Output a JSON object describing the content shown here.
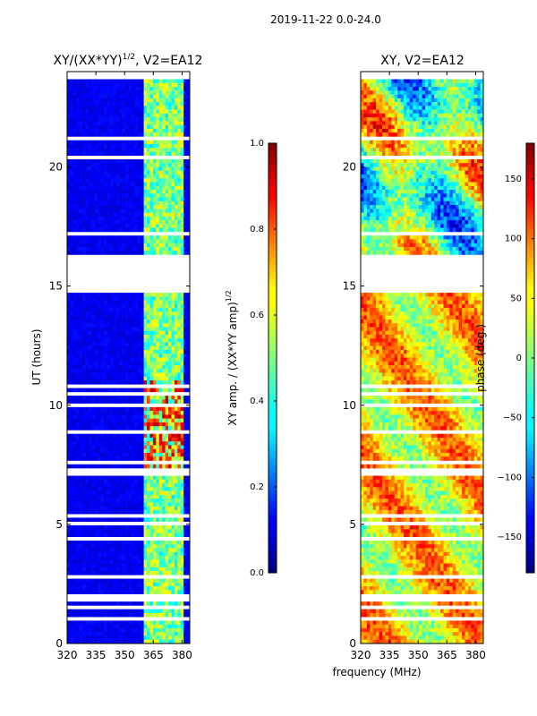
{
  "suptitle": "2019-11-22 0.0-24.0",
  "chart_data": [
    {
      "type": "heatmap",
      "title_main": "XY/(XX*YY)",
      "title_sup": "1/2",
      "title_tail": ", V2=EA12",
      "ylabel": "UT (hours)",
      "xlabel": "",
      "xlim": [
        320,
        384
      ],
      "ylim": [
        0,
        24
      ],
      "xticks": [
        320,
        335,
        350,
        365,
        380
      ],
      "yticks": [
        0,
        5,
        10,
        15,
        20
      ],
      "data_gap_hours": [
        16.3,
        14.7
      ],
      "colorbar": {
        "label_main": "XY amp. / (XX*YY amp)",
        "label_sup": "1/2",
        "range": [
          0.0,
          1.0
        ],
        "ticks": [
          "0.0",
          "0.2",
          "0.4",
          "0.6",
          "0.8",
          "1.0"
        ]
      }
    },
    {
      "type": "heatmap",
      "title": "XY, V2=EA12",
      "xlabel": "frequency (MHz)",
      "xlim": [
        320,
        384
      ],
      "ylim": [
        0,
        24
      ],
      "xticks": [
        320,
        335,
        350,
        365,
        380
      ],
      "yticks": [
        0,
        5,
        10,
        15,
        20
      ],
      "data_gap_hours": [
        16.3,
        14.7
      ],
      "colorbar": {
        "label": "phase (deg.)",
        "range": [
          -180,
          180
        ],
        "ticks": [
          -150,
          -100,
          -50,
          0,
          50,
          100,
          150
        ]
      }
    }
  ]
}
